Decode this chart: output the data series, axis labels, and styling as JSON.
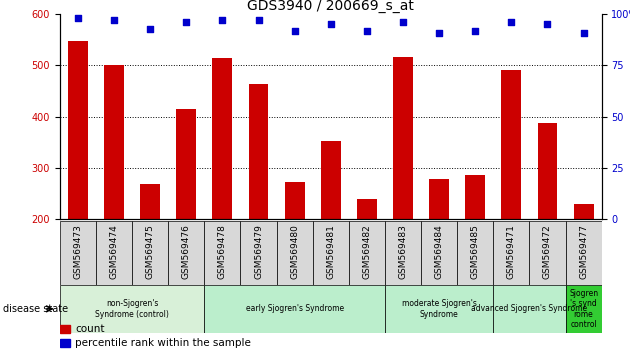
{
  "title": "GDS3940 / 200669_s_at",
  "samples": [
    "GSM569473",
    "GSM569474",
    "GSM569475",
    "GSM569476",
    "GSM569478",
    "GSM569479",
    "GSM569480",
    "GSM569481",
    "GSM569482",
    "GSM569483",
    "GSM569484",
    "GSM569485",
    "GSM569471",
    "GSM569472",
    "GSM569477"
  ],
  "counts": [
    548,
    500,
    270,
    415,
    515,
    463,
    273,
    352,
    240,
    517,
    278,
    287,
    492,
    388,
    230
  ],
  "percentile_ranks": [
    98,
    97,
    93,
    96,
    97,
    97,
    92,
    95,
    92,
    96,
    91,
    92,
    96,
    95,
    91
  ],
  "bar_color": "#cc0000",
  "dot_color": "#0000cc",
  "ylim_left": [
    200,
    600
  ],
  "ylim_right": [
    0,
    100
  ],
  "yticks_left": [
    200,
    300,
    400,
    500,
    600
  ],
  "yticks_right": [
    0,
    25,
    50,
    75,
    100
  ],
  "grid_lines": [
    300,
    400,
    500
  ],
  "title_fontsize": 10,
  "tick_fontsize": 7,
  "legend_fontsize": 7.5,
  "bar_width": 0.55,
  "groups": [
    {
      "label": "non-Sjogren's\nSyndrome (control)",
      "start": 0,
      "end": 3,
      "color": "#d8f0d8",
      "bright": false
    },
    {
      "label": "early Sjogren's Syndrome",
      "start": 4,
      "end": 8,
      "color": "#bbeecc",
      "bright": false
    },
    {
      "label": "moderate Sjogren's\nSyndrome",
      "start": 9,
      "end": 11,
      "color": "#bbeecc",
      "bright": false
    },
    {
      "label": "advanced Sjogren's Syndrome",
      "start": 12,
      "end": 13,
      "color": "#bbeecc",
      "bright": false
    },
    {
      "label": "Sjogren\ns synd\nrome\ncontrol",
      "start": 14,
      "end": 14,
      "color": "#44cc44",
      "bright": true
    }
  ],
  "group_light_color": "#d8f0d8",
  "group_bright_color": "#44cc44",
  "sample_box_color": "#d8d8d8"
}
